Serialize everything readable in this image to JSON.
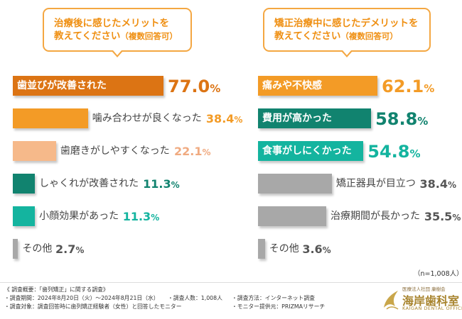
{
  "left_question": {
    "line1": "治療後に感じたメリットを",
    "line2": "教えてください",
    "suffix": "（複数回答可）"
  },
  "right_question": {
    "line1": "矯正治療中に感じたデメリットを",
    "line2": "教えてください",
    "suffix": "（複数回答可）"
  },
  "chart_data": [
    {
      "type": "bar",
      "orientation": "horizontal",
      "title": "治療後に感じたメリットを教えてください（複数回答可）",
      "unit": "%",
      "categories": [
        "歯並びが改善された",
        "噛み合わせが良くなった",
        "歯磨きがしやすくなった",
        "しゃくれが改善された",
        "小顔効果があった",
        "その他"
      ],
      "values": [
        77.0,
        38.4,
        22.1,
        11.3,
        11.3,
        2.7
      ],
      "value_labels": [
        "77.0",
        "38.4",
        "22.1",
        "11.3",
        "11.3",
        "2.7"
      ],
      "bar_colors": [
        "#dc7414",
        "#f39b26",
        "#f6b98a",
        "#11836f",
        "#14b49f",
        "#a8a8a8"
      ],
      "pct_colors": [
        "#dc7414",
        "#f39b26",
        "#f0aa80",
        "#11836f",
        "#14b49f",
        "#555555"
      ],
      "xlim": [
        0,
        77.0
      ]
    },
    {
      "type": "bar",
      "orientation": "horizontal",
      "title": "矯正治療中に感じたデメリットを教えてください（複数回答可）",
      "unit": "%",
      "categories": [
        "痛みや不快感",
        "費用が高かった",
        "食事がしにくかった",
        "矯正器具が目立つ",
        "治療期間が長かった",
        "その他"
      ],
      "values": [
        62.1,
        58.8,
        54.8,
        38.4,
        35.5,
        3.6
      ],
      "value_labels": [
        "62.1",
        "58.8",
        "54.8",
        "38.4",
        "35.5",
        "3.6"
      ],
      "bar_colors": [
        "#f39b26",
        "#11836f",
        "#14b49f",
        "#a8a8a8",
        "#a8a8a8",
        "#a8a8a8"
      ],
      "pct_colors": [
        "#f39b26",
        "#11836f",
        "#14b49f",
        "#555555",
        "#555555",
        "#555555"
      ],
      "xlim": [
        0,
        62.1
      ]
    }
  ],
  "sample_note": "（n=1,008人）",
  "footer": {
    "overview": "《 調査概要：「歯列矯正」に関する調査》",
    "period": "・調査期間：2024年8月20日（火）～2024年8月21日（水）",
    "count": "・調査人数：1,008人",
    "method": "・調査方法：インターネット調査",
    "target": "・調査対象：調査回答時に歯列矯正経験者（女性）と回答したモニター",
    "provider": "・モニター提供元：PRIZMAリサーチ"
  },
  "logo": {
    "subtitle": "医療法人社団 康樹会",
    "name": "海岸歯科室",
    "english": "KAIGAN DENTAL OFFICE"
  }
}
